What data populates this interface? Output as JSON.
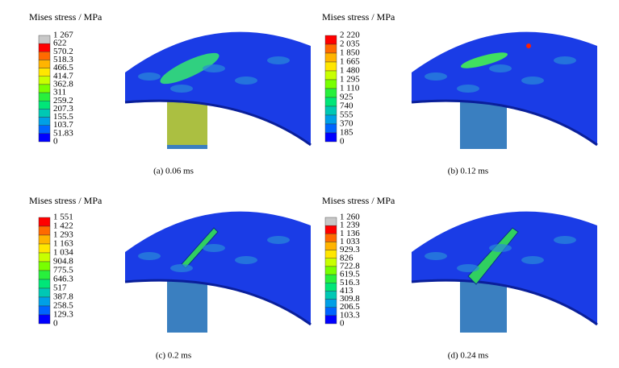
{
  "panels": [
    {
      "legend_title": "Mises stress / MPa",
      "ticks": [
        "1 267",
        "622",
        "570.2",
        "518.3",
        "466.5",
        "414.7",
        "362.8",
        "311",
        "259.2",
        "207.3",
        "155.5",
        "103.7",
        "51.83",
        "0"
      ],
      "caption": "(a) 0.06 ms"
    },
    {
      "legend_title": "Mises stress / MPa",
      "ticks": [
        "2 220",
        "2 035",
        "1 850",
        "1 665",
        "1 480",
        "1 295",
        "1 110",
        "925",
        "740",
        "555",
        "370",
        "185",
        "0"
      ],
      "caption": "(b) 0.12 ms"
    },
    {
      "legend_title": "Mises stress / MPa",
      "ticks": [
        "1 551",
        "1 422",
        "1 293",
        "1 163",
        "1 034",
        "904.8",
        "775.5",
        "646.3",
        "517",
        "387.8",
        "258.5",
        "129.3",
        "0"
      ],
      "caption": "(c) 0.2 ms"
    },
    {
      "legend_title": "Mises stress / MPa",
      "ticks": [
        "1 260",
        "1 239",
        "1 136",
        "1 033",
        "929.3",
        "826",
        "722.8",
        "619.5",
        "516.3",
        "413",
        "309.8",
        "206.5",
        "103.3",
        "0"
      ],
      "caption": "(d) 0.24 ms"
    }
  ]
}
